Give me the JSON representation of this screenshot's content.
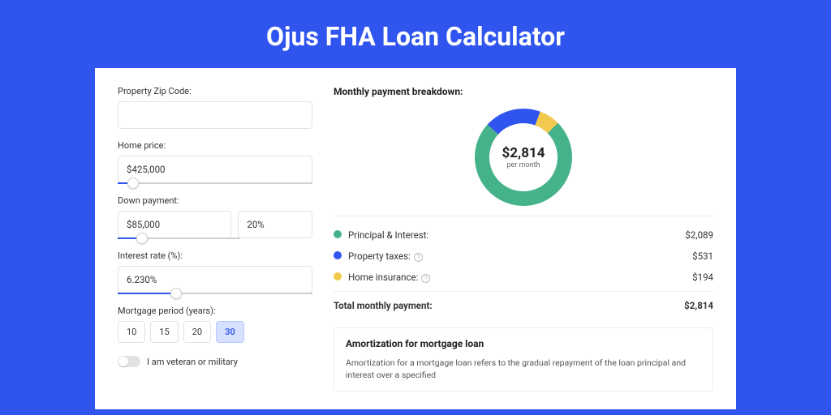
{
  "page": {
    "title": "Ojus FHA Loan Calculator",
    "bg_color": "#2f55ee",
    "panel_bg": "#ffffff"
  },
  "form": {
    "zip": {
      "label": "Property Zip Code:",
      "value": ""
    },
    "home_price": {
      "label": "Home price:",
      "value": "$425,000",
      "slider_pct": 8
    },
    "down_payment": {
      "label": "Down payment:",
      "amount": "$85,000",
      "pct": "20%",
      "slider_pct": 20
    },
    "interest_rate": {
      "label": "Interest rate (%):",
      "value": "6.230%",
      "slider_pct": 30
    },
    "mortgage_period": {
      "label": "Mortgage period (years):",
      "options": [
        "10",
        "15",
        "20",
        "30"
      ],
      "selected": "30"
    },
    "veteran": {
      "label": "I am veteran or military",
      "on": false
    }
  },
  "breakdown": {
    "title": "Monthly payment breakdown:",
    "total_amount": "$2,814",
    "sub": "per month",
    "donut": {
      "size": 120,
      "thickness": 18,
      "segments": [
        {
          "key": "principal_interest",
          "value": 2089,
          "color": "#46b289"
        },
        {
          "key": "property_taxes",
          "value": 531,
          "color": "#2f55ee"
        },
        {
          "key": "home_insurance",
          "value": 194,
          "color": "#f2c94c"
        }
      ],
      "start_angle_deg": -45
    },
    "rows": [
      {
        "swatch": "#46b289",
        "label": "Principal & Interest:",
        "value": "$2,089",
        "help": false
      },
      {
        "swatch": "#2f55ee",
        "label": "Property taxes:",
        "value": "$531",
        "help": true
      },
      {
        "swatch": "#f2c94c",
        "label": "Home insurance:",
        "value": "$194",
        "help": true
      }
    ],
    "total": {
      "label": "Total monthly payment:",
      "value": "$2,814"
    }
  },
  "amortization": {
    "title": "Amortization for mortgage loan",
    "text": "Amortization for a mortgage loan refers to the gradual repayment of the loan principal and interest over a specified"
  }
}
